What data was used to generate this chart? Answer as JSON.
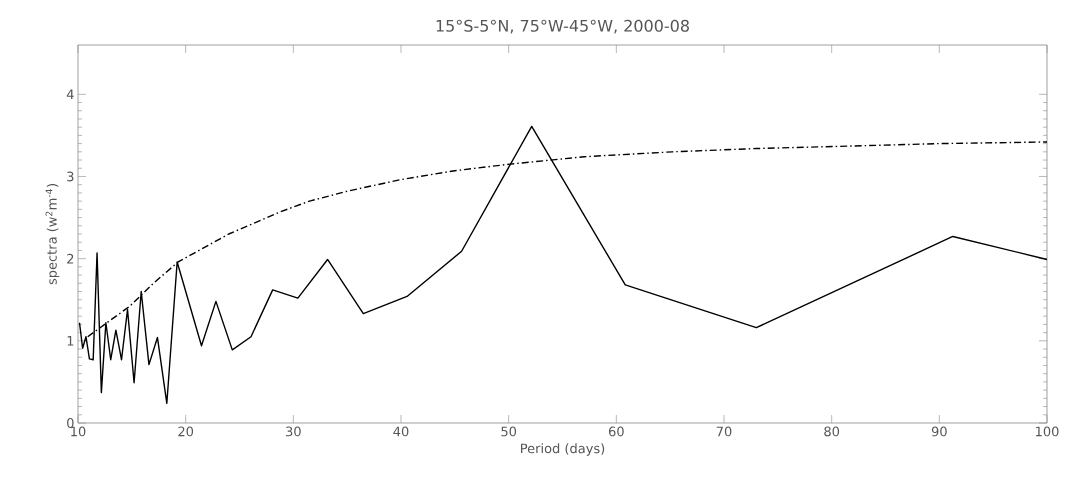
{
  "chart_data": {
    "type": "line",
    "title": "15°S-5°N, 75°W-45°W, 2000-08",
    "xlabel": "Period (days)",
    "ylabel": "spectra (w$^{2}$m$^{-4}$)",
    "xlim": [
      10,
      100
    ],
    "ylim": [
      0,
      4.6
    ],
    "xticks": [
      10,
      20,
      30,
      40,
      50,
      60,
      70,
      80,
      90,
      100
    ],
    "yticks": [
      0,
      1,
      2,
      3,
      4
    ],
    "grid": false,
    "marker": "none",
    "series": [
      {
        "color": "#000000",
        "line_style": "solid",
        "x": [
          10.14,
          10.43,
          10.74,
          11.06,
          11.41,
          11.77,
          12.17,
          12.59,
          13.04,
          13.52,
          14.04,
          14.6,
          15.21,
          15.87,
          16.59,
          17.38,
          18.25,
          19.21,
          21.47,
          22.81,
          24.33,
          26.07,
          28.08,
          30.42,
          33.18,
          36.5,
          40.56,
          45.63,
          52.14,
          60.83,
          73,
          91.25,
          100
        ],
        "values": [
          1.22,
          0.91,
          1.05,
          0.78,
          0.77,
          2.07,
          0.37,
          1.22,
          0.77,
          1.13,
          0.77,
          1.38,
          0.49,
          1.6,
          0.71,
          1.04,
          0.24,
          1.96,
          0.94,
          1.48,
          0.89,
          1.05,
          1.62,
          1.52,
          1.99,
          1.33,
          1.54,
          2.09,
          3.61,
          1.68,
          1.16,
          2.27,
          1.99
        ]
      },
      {
        "color": "#000000",
        "line_style": "dashdot",
        "x": [
          10.9,
          13,
          14.8,
          17,
          19.3,
          24,
          28.8,
          31.5,
          35,
          39.9,
          45,
          50.1,
          57,
          65.2,
          73,
          81.7,
          90,
          100
        ],
        "values": [
          1.05,
          1.25,
          1.42,
          1.7,
          1.96,
          2.3,
          2.57,
          2.7,
          2.82,
          2.96,
          3.07,
          3.15,
          3.24,
          3.3,
          3.34,
          3.37,
          3.4,
          3.42
        ]
      }
    ]
  }
}
